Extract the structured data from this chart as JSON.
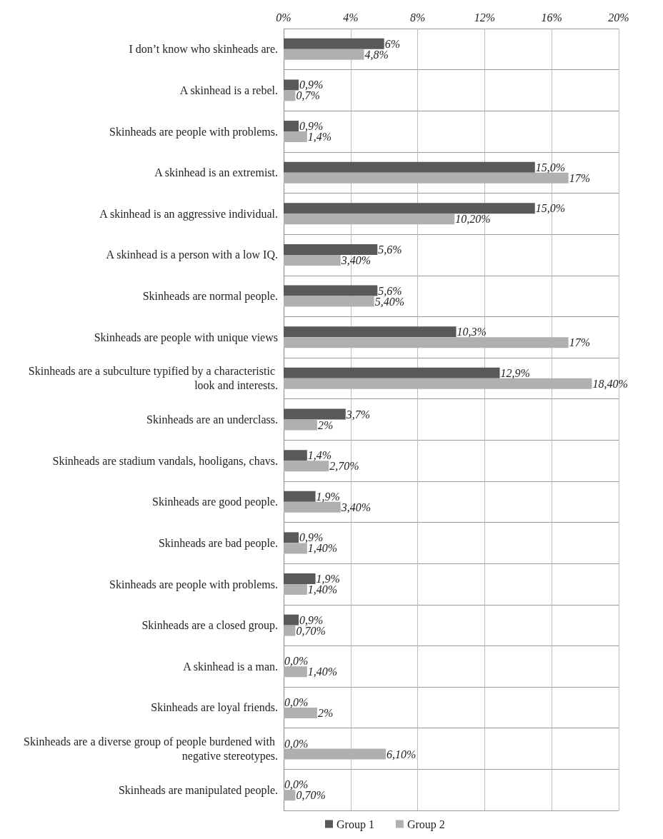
{
  "chart_data": {
    "type": "bar",
    "orientation": "horizontal",
    "categories": [
      "I don’t know who skinheads are.",
      "A skinhead is a rebel.",
      "Skinheads are people with problems.",
      "A skinhead is an extremist.",
      "A skinhead is an aggressive individual.",
      "A skinhead is a person with a low IQ.",
      "Skinheads are normal people.",
      "Skinheads are people with unique views",
      "Skinheads are a subculture typified by a characteristic look and interests.",
      "Skinheads are an underclass.",
      "Skinheads are stadium vandals, hooligans, chavs.",
      "Skinheads are good people.",
      "Skinheads are bad people.",
      "Skinheads are people with problems.",
      "Skinheads are a closed group.",
      "A skinhead is a man.",
      "Skinheads are loyal friends.",
      "Skinheads are a diverse group of people burdened with negative stereotypes.",
      "Skinheads are manipulated people."
    ],
    "series": [
      {
        "name": "Group 1",
        "color": "#595959",
        "values": [
          6,
          0.9,
          0.9,
          15.0,
          15.0,
          5.6,
          5.6,
          10.3,
          12.9,
          3.7,
          1.4,
          1.9,
          0.9,
          1.9,
          0.9,
          0,
          0,
          0,
          0
        ],
        "value_labels": [
          "6%",
          "0,9%",
          "0,9%",
          "15,0%",
          "15,0%",
          "5,6%",
          "5,6%",
          "10,3%",
          "12,9%",
          "3,7%",
          "1,4%",
          "1,9%",
          "0,9%",
          "1,9%",
          "0,9%",
          "0,0%",
          "0,0%",
          "0,0%",
          "0,0%"
        ]
      },
      {
        "name": "Group 2",
        "color": "#b0b0b0",
        "values": [
          4.8,
          0.7,
          1.4,
          17,
          10.2,
          3.4,
          5.4,
          17,
          18.4,
          2,
          2.7,
          3.4,
          1.4,
          1.4,
          0.7,
          1.4,
          2,
          6.1,
          0.7
        ],
        "value_labels": [
          "4,8%",
          "0,7%",
          "1,4%",
          "17%",
          "10,20%",
          "3,40%",
          "5,40%",
          "17%",
          "18,40%",
          "2%",
          "2,70%",
          "3,40%",
          "1,40%",
          "1,40%",
          "0,70%",
          "1,40%",
          "2%",
          "6,10%",
          "0,70%"
        ]
      }
    ],
    "xlim": [
      0,
      20
    ],
    "xticks": [
      {
        "value": 0,
        "label": "0%"
      },
      {
        "value": 4,
        "label": "4%"
      },
      {
        "value": 8,
        "label": "8%"
      },
      {
        "value": 12,
        "label": "12%"
      },
      {
        "value": 16,
        "label": "16%"
      },
      {
        "value": 20,
        "label": "20%"
      }
    ],
    "grid": true,
    "legend": "bottom"
  }
}
